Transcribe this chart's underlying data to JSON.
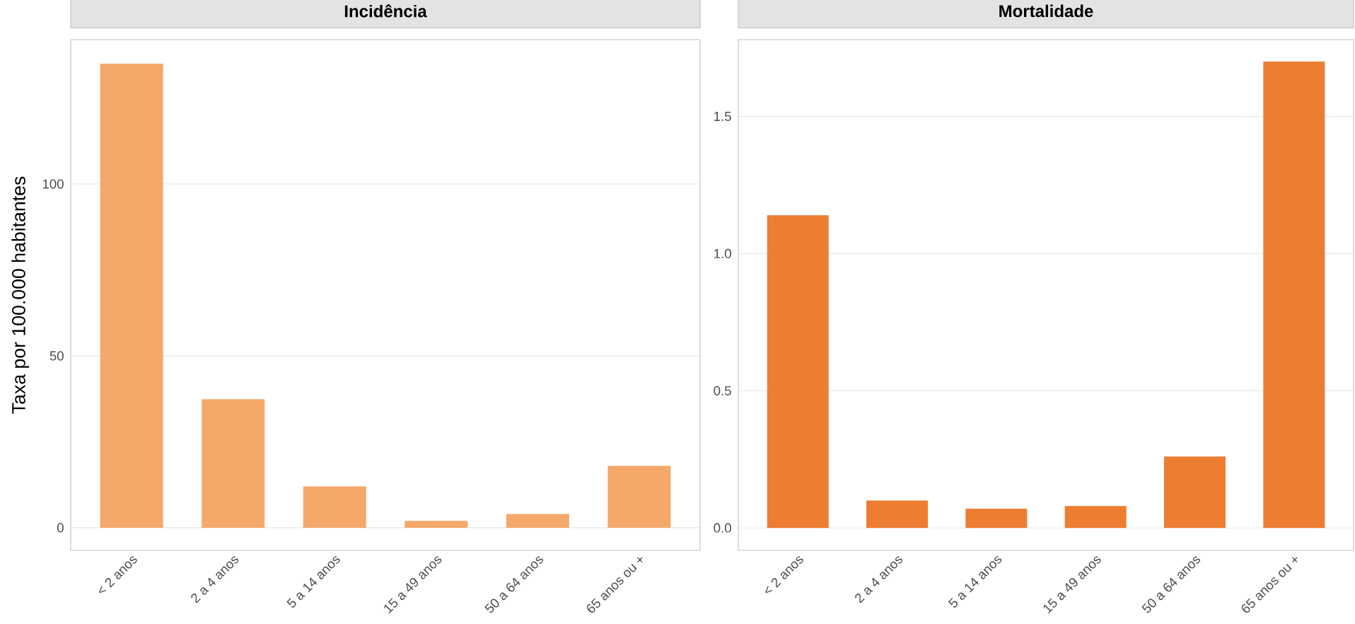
{
  "chart_data": [
    {
      "type": "bar",
      "title": "Incidência",
      "ylabel": "Taxa por 100.000 habitantes",
      "categories": [
        "< 2 anos",
        "2 a 4 anos",
        "5 a 14 anos",
        "15 a 49 anos",
        "50 a 64 anos",
        "65 anos ou +"
      ],
      "values": [
        135,
        37.4,
        12,
        2,
        4,
        18
      ],
      "color": "#f4a86a",
      "ylim": [
        -6.6,
        142
      ],
      "yticks": [
        0,
        50,
        100
      ],
      "grid": "y"
    },
    {
      "type": "bar",
      "title": "Mortalidade",
      "categories": [
        "< 2 anos",
        "2 a 4 anos",
        "5 a 14 anos",
        "15 a 49 anos",
        "50 a 64 anos",
        "65 anos ou +"
      ],
      "values": [
        1.14,
        0.1,
        0.07,
        0.08,
        0.26,
        1.7
      ],
      "color": "#ed7d31",
      "ylim": [
        -0.082,
        1.78
      ],
      "yticks": [
        {
          "value": 0,
          "label": "0.0"
        },
        0.5,
        {
          "value": 1,
          "label": "1.0"
        },
        1.5
      ],
      "grid": "y"
    }
  ]
}
